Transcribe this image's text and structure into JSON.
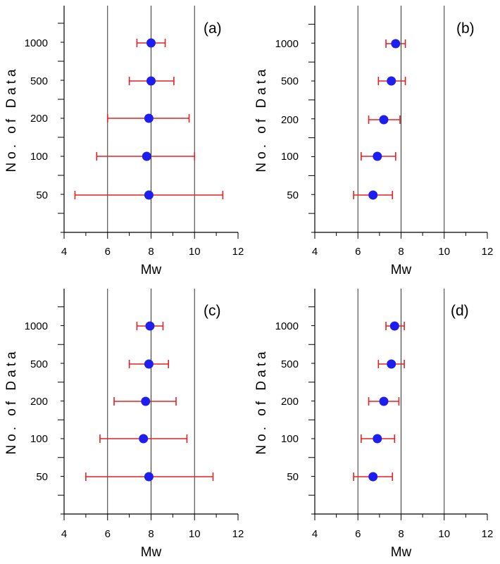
{
  "chart_data": [
    {
      "type": "scatter",
      "panel_label": "(a)",
      "xlabel": "Mw",
      "ylabel": "No. of Data",
      "xlim": [
        4,
        12
      ],
      "x_ticks": [
        "4",
        "6",
        "8",
        "10",
        "12"
      ],
      "gridlines_x": [
        6,
        8,
        10
      ],
      "categories": [
        "50",
        "100",
        "200",
        "500",
        "1000"
      ],
      "points": [
        {
          "category": "50",
          "mean": 7.9,
          "lower": 4.5,
          "upper": 11.3
        },
        {
          "category": "100",
          "mean": 7.8,
          "lower": 5.5,
          "upper": 10.0
        },
        {
          "category": "200",
          "mean": 7.9,
          "lower": 6.0,
          "upper": 9.75
        },
        {
          "category": "500",
          "mean": 8.0,
          "lower": 7.0,
          "upper": 9.05
        },
        {
          "category": "1000",
          "mean": 8.0,
          "lower": 7.35,
          "upper": 8.65
        }
      ]
    },
    {
      "type": "scatter",
      "panel_label": "(b)",
      "xlabel": "Mw",
      "ylabel": "No. of Data",
      "xlim": [
        4,
        12
      ],
      "x_ticks": [
        "4",
        "6",
        "8",
        "10",
        "12"
      ],
      "gridlines_x": [
        6,
        8,
        10
      ],
      "categories": [
        "50",
        "100",
        "200",
        "500",
        "1000"
      ],
      "points": [
        {
          "category": "50",
          "mean": 6.7,
          "lower": 5.8,
          "upper": 7.6
        },
        {
          "category": "100",
          "mean": 6.9,
          "lower": 6.15,
          "upper": 7.75
        },
        {
          "category": "200",
          "mean": 7.2,
          "lower": 6.5,
          "upper": 7.95
        },
        {
          "category": "500",
          "mean": 7.55,
          "lower": 6.95,
          "upper": 8.2
        },
        {
          "category": "1000",
          "mean": 7.75,
          "lower": 7.3,
          "upper": 8.2
        }
      ]
    },
    {
      "type": "scatter",
      "panel_label": "(c)",
      "xlabel": "Mw",
      "ylabel": "No. of Data",
      "xlim": [
        4,
        12
      ],
      "x_ticks": [
        "4",
        "6",
        "8",
        "10",
        "12"
      ],
      "gridlines_x": [
        6,
        8,
        10
      ],
      "categories": [
        "50",
        "100",
        "200",
        "500",
        "1000"
      ],
      "points": [
        {
          "category": "50",
          "mean": 7.9,
          "lower": 5.0,
          "upper": 10.85
        },
        {
          "category": "100",
          "mean": 7.65,
          "lower": 5.65,
          "upper": 9.65
        },
        {
          "category": "200",
          "mean": 7.75,
          "lower": 6.3,
          "upper": 9.15
        },
        {
          "category": "500",
          "mean": 7.9,
          "lower": 7.0,
          "upper": 8.8
        },
        {
          "category": "1000",
          "mean": 7.95,
          "lower": 7.35,
          "upper": 8.55
        }
      ]
    },
    {
      "type": "scatter",
      "panel_label": "(d)",
      "xlabel": "Mw",
      "ylabel": "No. of Data",
      "xlim": [
        4,
        12
      ],
      "x_ticks": [
        "4",
        "6",
        "8",
        "10",
        "12"
      ],
      "gridlines_x": [
        6,
        8,
        10
      ],
      "categories": [
        "50",
        "100",
        "200",
        "500",
        "1000"
      ],
      "points": [
        {
          "category": "50",
          "mean": 6.7,
          "lower": 5.8,
          "upper": 7.6
        },
        {
          "category": "100",
          "mean": 6.9,
          "lower": 6.15,
          "upper": 7.7
        },
        {
          "category": "200",
          "mean": 7.2,
          "lower": 6.5,
          "upper": 7.9
        },
        {
          "category": "500",
          "mean": 7.55,
          "lower": 6.95,
          "upper": 8.15
        },
        {
          "category": "1000",
          "mean": 7.7,
          "lower": 7.3,
          "upper": 8.15
        }
      ]
    }
  ],
  "colors": {
    "marker": "#1e1ef0",
    "error_bar": "#e62020",
    "axis": "#000000",
    "grid": "#333333"
  }
}
